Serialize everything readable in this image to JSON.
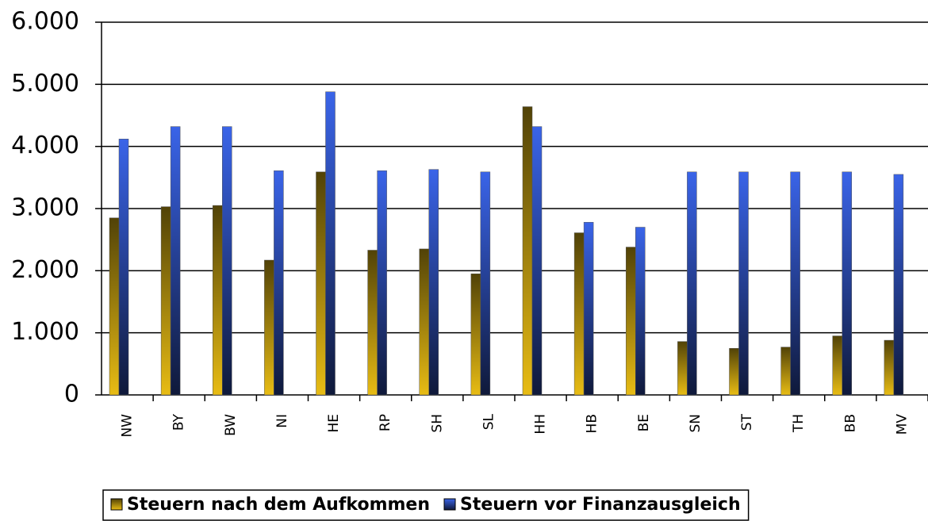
{
  "chart_data": {
    "type": "bar",
    "categories": [
      "NW",
      "BY",
      "BW",
      "NI",
      "HE",
      "RP",
      "SH",
      "SL",
      "HH",
      "HB",
      "BE",
      "SN",
      "ST",
      "TH",
      "BB",
      "MV"
    ],
    "series": [
      {
        "name": "Steuern nach dem Aufkommen",
        "color": "#e8bc14",
        "values": [
          2850,
          3030,
          3050,
          2170,
          3590,
          2330,
          2350,
          1950,
          4640,
          2610,
          2380,
          860,
          750,
          770,
          950,
          880
        ]
      },
      {
        "name": "Steuern vor Finanzausgleich",
        "color": "#3a64e8",
        "values": [
          4120,
          4320,
          4320,
          3610,
          4880,
          3610,
          3630,
          3590,
          4320,
          2780,
          2700,
          3590,
          3590,
          3590,
          3590,
          3550
        ]
      }
    ],
    "ylim": [
      0,
      6000
    ],
    "yticks": [
      {
        "value": 0,
        "label": "0"
      },
      {
        "value": 1000,
        "label": "1.000"
      },
      {
        "value": 2000,
        "label": "2.000"
      },
      {
        "value": 3000,
        "label": "3.000"
      },
      {
        "value": 4000,
        "label": "4.000"
      },
      {
        "value": 5000,
        "label": "5.000"
      },
      {
        "value": 6000,
        "label": "6.000"
      }
    ],
    "grid": true,
    "legend": "bottom"
  }
}
